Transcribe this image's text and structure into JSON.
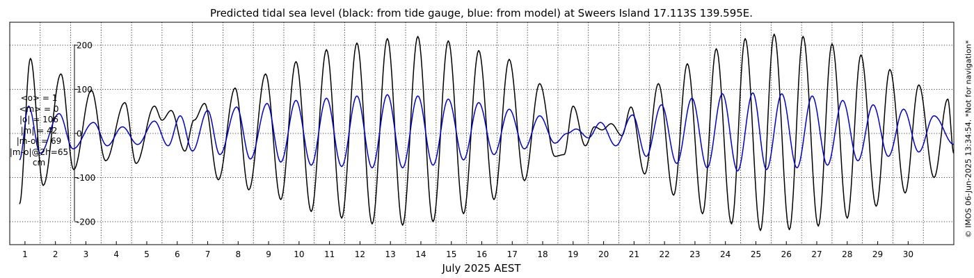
{
  "chart_data": {
    "type": "line",
    "title": "Predicted tidal sea level (black: from tide gauge, blue: from model) at Sweers Island 17.113S 139.595E.",
    "xlabel": "July 2025 AEST",
    "ylabel": "",
    "xlim": [
      0.0,
      31.0
    ],
    "ylim": [
      -255,
      255
    ],
    "grid": true,
    "x_ticks": [
      "1",
      "2",
      "3",
      "4",
      "5",
      "6",
      "7",
      "8",
      "9",
      "10",
      "11",
      "12",
      "13",
      "14",
      "15",
      "16",
      "17",
      "18",
      "19",
      "20",
      "21",
      "22",
      "23",
      "24",
      "25",
      "26",
      "27",
      "28",
      "29",
      "30"
    ],
    "y_ticks": [
      {
        "value": 200,
        "label": "200"
      },
      {
        "value": 100,
        "label": "100"
      },
      {
        "value": 0,
        "label": "0"
      },
      {
        "value": -100,
        "label": "-100"
      },
      {
        "value": -200,
        "label": "-200"
      }
    ],
    "units": "cm",
    "series": [
      {
        "name": "tide gauge",
        "color": "#000000",
        "extrema": [
          [
            0.32,
            -160
          ],
          [
            0.68,
            170
          ],
          [
            1.1,
            -118
          ],
          [
            1.68,
            135
          ],
          [
            2.1,
            -82
          ],
          [
            2.68,
            98
          ],
          [
            3.15,
            -62
          ],
          [
            3.78,
            70
          ],
          [
            4.15,
            -68
          ],
          [
            4.75,
            62
          ],
          [
            5.0,
            30
          ],
          [
            5.3,
            52
          ],
          [
            5.75,
            -40
          ],
          [
            6.05,
            30
          ],
          [
            6.4,
            68
          ],
          [
            6.85,
            -105
          ],
          [
            7.4,
            103
          ],
          [
            7.85,
            -128
          ],
          [
            8.4,
            135
          ],
          [
            8.9,
            -150
          ],
          [
            9.4,
            163
          ],
          [
            9.9,
            -177
          ],
          [
            10.4,
            190
          ],
          [
            10.9,
            -192
          ],
          [
            11.4,
            205
          ],
          [
            11.9,
            -205
          ],
          [
            12.4,
            215
          ],
          [
            12.9,
            -208
          ],
          [
            13.4,
            220
          ],
          [
            13.9,
            -200
          ],
          [
            14.4,
            210
          ],
          [
            14.9,
            -182
          ],
          [
            15.4,
            188
          ],
          [
            15.9,
            -150
          ],
          [
            16.4,
            168
          ],
          [
            16.9,
            -107
          ],
          [
            17.4,
            113
          ],
          [
            17.9,
            -52
          ],
          [
            18.2,
            -48
          ],
          [
            18.5,
            62
          ],
          [
            18.9,
            -28
          ],
          [
            19.2,
            15
          ],
          [
            19.45,
            8
          ],
          [
            19.75,
            22
          ],
          [
            20.1,
            -5
          ],
          [
            20.4,
            60
          ],
          [
            20.85,
            -92
          ],
          [
            21.3,
            113
          ],
          [
            21.8,
            -140
          ],
          [
            22.25,
            158
          ],
          [
            22.75,
            -182
          ],
          [
            23.2,
            192
          ],
          [
            23.7,
            -205
          ],
          [
            24.15,
            215
          ],
          [
            24.65,
            -220
          ],
          [
            25.1,
            225
          ],
          [
            25.6,
            -218
          ],
          [
            26.05,
            220
          ],
          [
            26.55,
            -210
          ],
          [
            27.0,
            203
          ],
          [
            27.5,
            -192
          ],
          [
            27.95,
            178
          ],
          [
            28.45,
            -165
          ],
          [
            28.9,
            145
          ],
          [
            29.4,
            -135
          ],
          [
            29.85,
            110
          ],
          [
            30.35,
            -100
          ],
          [
            30.8,
            78
          ],
          [
            31.0,
            -45
          ]
        ]
      },
      {
        "name": "model",
        "color": "#0000cc",
        "extrema": [
          [
            0.32,
            -60
          ],
          [
            0.62,
            62
          ],
          [
            1.0,
            -45
          ],
          [
            1.62,
            45
          ],
          [
            2.08,
            -35
          ],
          [
            2.75,
            25
          ],
          [
            3.2,
            -28
          ],
          [
            3.7,
            15
          ],
          [
            4.2,
            -25
          ],
          [
            4.75,
            28
          ],
          [
            5.2,
            -28
          ],
          [
            5.6,
            40
          ],
          [
            6.0,
            -40
          ],
          [
            6.5,
            52
          ],
          [
            6.9,
            -48
          ],
          [
            7.45,
            60
          ],
          [
            7.9,
            -58
          ],
          [
            8.45,
            68
          ],
          [
            8.9,
            -65
          ],
          [
            9.4,
            75
          ],
          [
            9.9,
            -72
          ],
          [
            10.4,
            80
          ],
          [
            10.9,
            -75
          ],
          [
            11.4,
            85
          ],
          [
            11.9,
            -78
          ],
          [
            12.4,
            88
          ],
          [
            12.9,
            -78
          ],
          [
            13.4,
            85
          ],
          [
            13.9,
            -72
          ],
          [
            14.4,
            78
          ],
          [
            14.9,
            -60
          ],
          [
            15.4,
            70
          ],
          [
            15.9,
            -48
          ],
          [
            16.4,
            55
          ],
          [
            16.9,
            -35
          ],
          [
            17.4,
            40
          ],
          [
            17.9,
            -22
          ],
          [
            18.3,
            0
          ],
          [
            18.6,
            10
          ],
          [
            19.0,
            -10
          ],
          [
            19.4,
            25
          ],
          [
            19.9,
            -28
          ],
          [
            20.45,
            42
          ],
          [
            20.9,
            -52
          ],
          [
            21.4,
            65
          ],
          [
            21.9,
            -68
          ],
          [
            22.4,
            80
          ],
          [
            22.9,
            -78
          ],
          [
            23.4,
            90
          ],
          [
            23.9,
            -85
          ],
          [
            24.4,
            92
          ],
          [
            24.85,
            -82
          ],
          [
            25.35,
            90
          ],
          [
            25.85,
            -78
          ],
          [
            26.35,
            85
          ],
          [
            26.85,
            -72
          ],
          [
            27.35,
            75
          ],
          [
            27.85,
            -62
          ],
          [
            28.35,
            65
          ],
          [
            28.85,
            -52
          ],
          [
            29.35,
            55
          ],
          [
            29.85,
            -42
          ],
          [
            30.35,
            40
          ],
          [
            31.0,
            -25
          ]
        ]
      }
    ]
  },
  "stats": [
    "<o> = 1",
    "<m> = 0",
    "|o| = 106",
    "|m| = 42",
    "|m-o| = 69",
    "|m-o|@2h=65",
    "cm"
  ],
  "credit": "© IMOS 06-Jun-2025 13:34:54. *Not for navigation*"
}
